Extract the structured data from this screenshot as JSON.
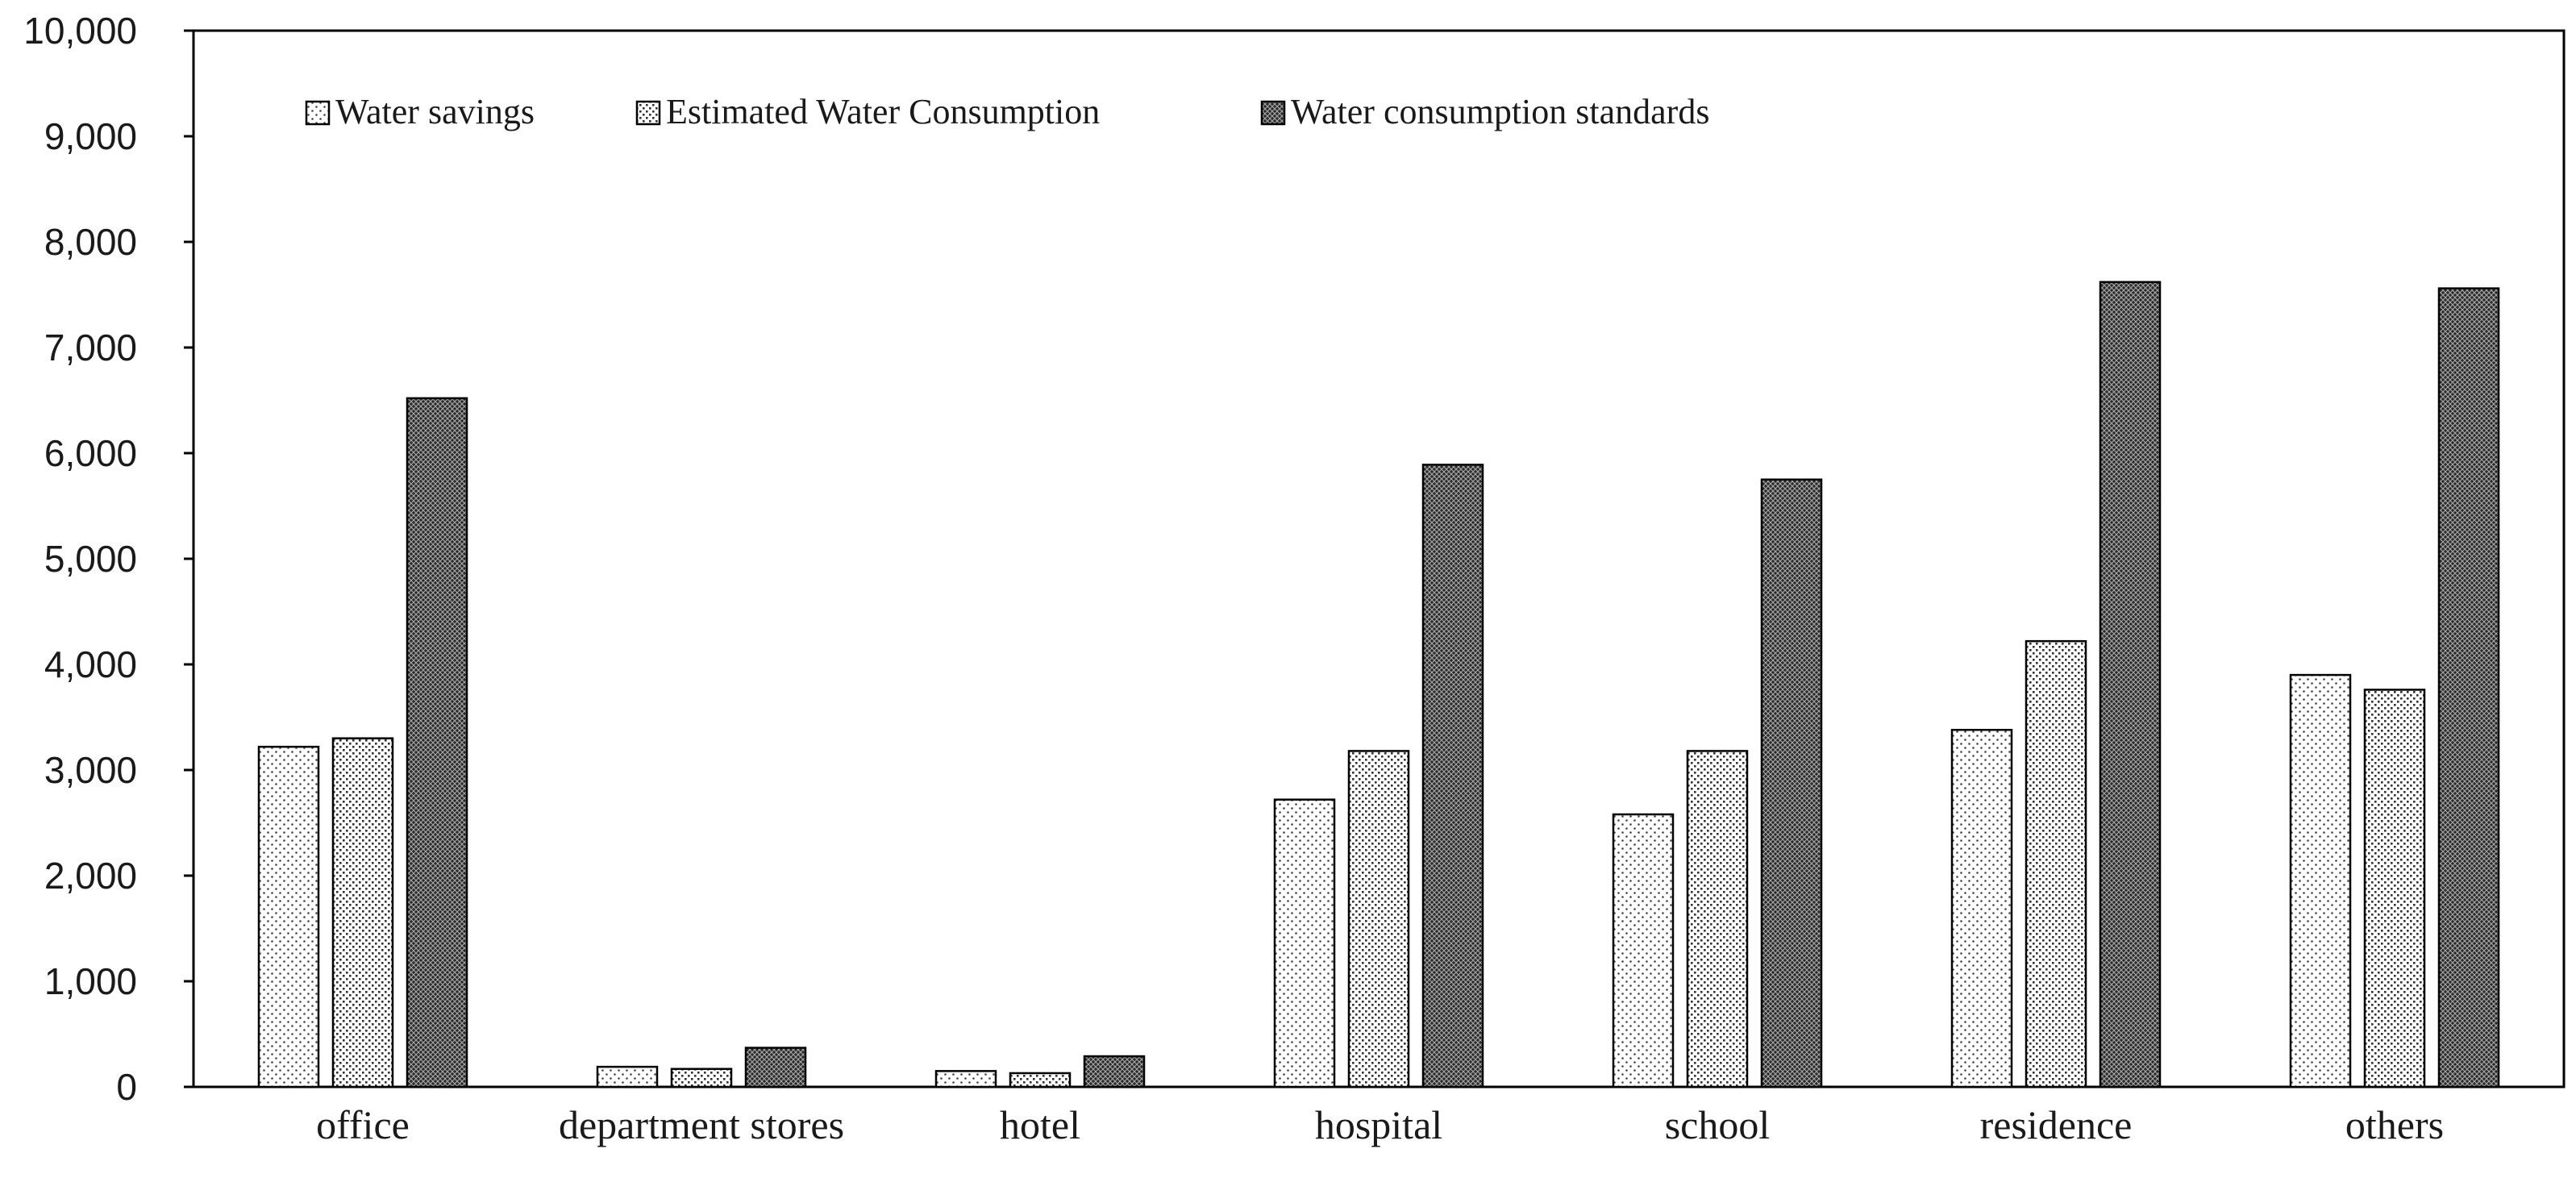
{
  "chart_data": {
    "type": "bar",
    "title": "",
    "xlabel": "",
    "ylabel": "",
    "ylim": [
      0,
      10000
    ],
    "yticks": [
      0,
      1000,
      2000,
      3000,
      4000,
      5000,
      6000,
      7000,
      8000,
      9000,
      10000
    ],
    "ytick_labels": [
      "0",
      "1,000",
      "2,000",
      "3,000",
      "4,000",
      "5,000",
      "6,000",
      "7,000",
      "8,000",
      "9,000",
      "10,000"
    ],
    "grid": false,
    "legend_position": "top-left",
    "categories": [
      "office",
      "department stores",
      "hotel",
      "hospital",
      "school",
      "residence",
      "others"
    ],
    "series": [
      {
        "name": "Water savings",
        "pattern": "light-dots",
        "values": [
          3220,
          190,
          150,
          2720,
          2580,
          3380,
          3900
        ]
      },
      {
        "name": "Estimated Water Consumption",
        "pattern": "medium-dots",
        "values": [
          3300,
          170,
          130,
          3180,
          3180,
          4220,
          3760
        ]
      },
      {
        "name": "Water consumption standards",
        "pattern": "dark-crosshatch",
        "values": [
          6520,
          370,
          290,
          5890,
          5750,
          7620,
          7560
        ]
      }
    ]
  }
}
